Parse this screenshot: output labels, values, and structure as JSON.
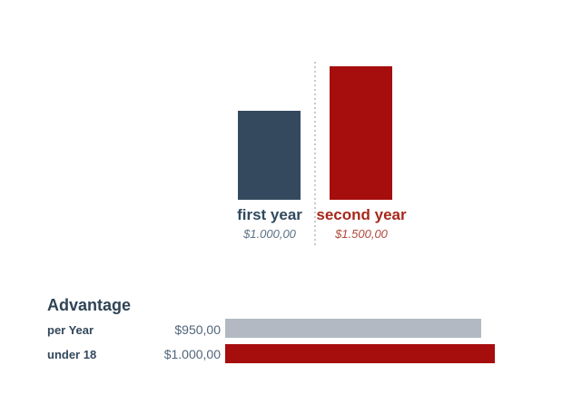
{
  "chart_data": [
    {
      "type": "bar",
      "orientation": "vertical",
      "categories": [
        "first year",
        "second year"
      ],
      "values": [
        1000,
        1500
      ],
      "value_labels": [
        "$1.000,00",
        "$1.500,00"
      ],
      "bar_colors": [
        "#34495e",
        "#a60d0d"
      ],
      "category_label_colors": [
        "#31495e",
        "#a6281a"
      ],
      "value_label_colors": [
        "#5d7286",
        "#b04a3c"
      ],
      "ylim": [
        0,
        1500
      ],
      "grid": false,
      "legend": "none",
      "separator": "dotted-vertical-line-between-bars"
    },
    {
      "type": "bar",
      "orientation": "horizontal",
      "title": "Advantage",
      "categories": [
        "per Year",
        "under 18"
      ],
      "values": [
        950,
        1000
      ],
      "value_labels": [
        "$950,00",
        "$1.000,00"
      ],
      "bar_colors": [
        "#b2b9c2",
        "#a60d0d"
      ],
      "xlim": [
        0,
        1000
      ],
      "grid": false,
      "legend": "none"
    }
  ],
  "colors": {
    "background": "#ffffff",
    "navy_accent": "#34495e",
    "red_accent": "#a60d0d",
    "gray_bar": "#b2b9c2",
    "divider": "#c9c9c9",
    "heading_text": "#2f4456",
    "row_label_text": "#33485c",
    "row_value_text": "#52657a"
  }
}
